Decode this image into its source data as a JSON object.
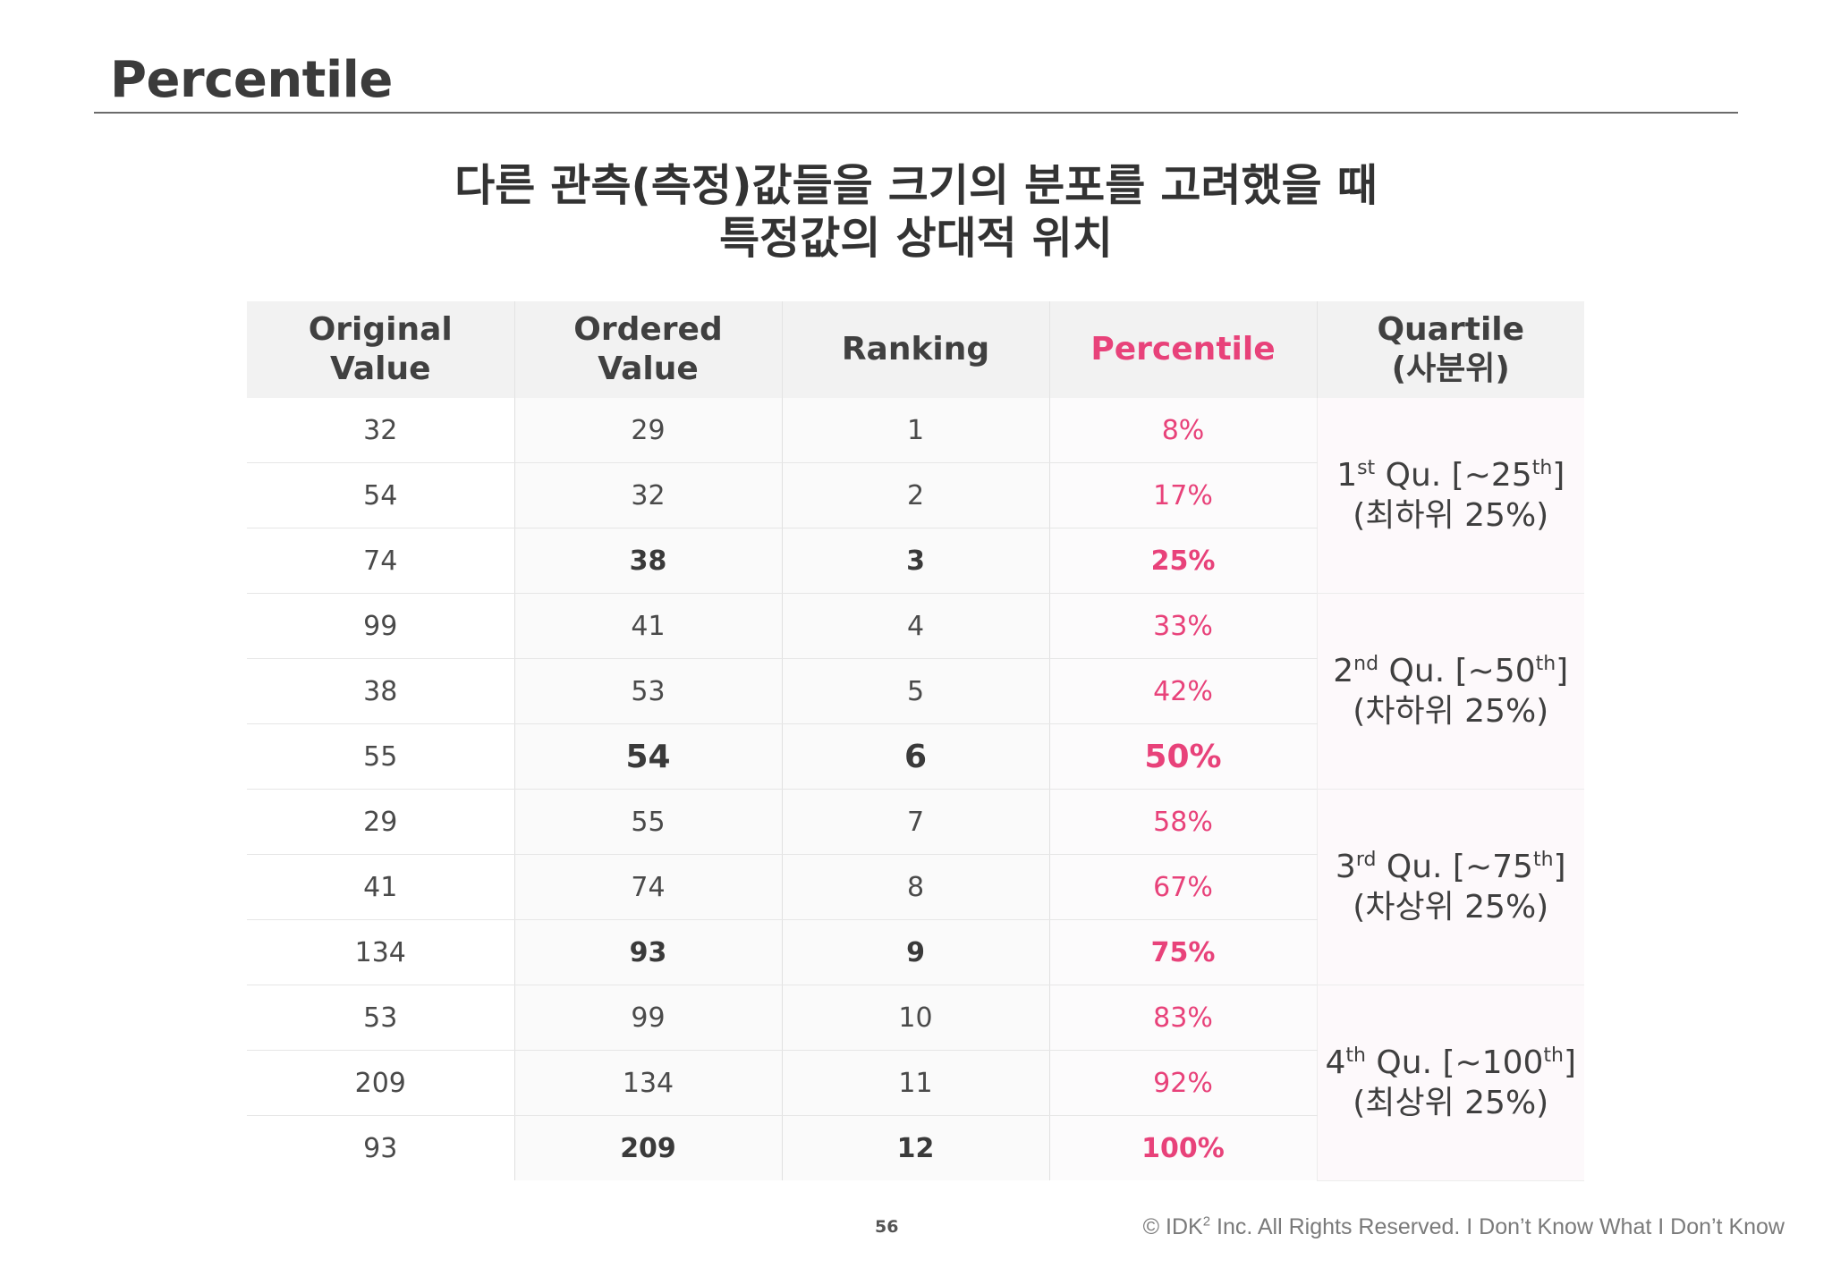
{
  "header": {
    "title": "Percentile"
  },
  "subtitle": {
    "line1": "다른 관측(측정)값들을 크기의 분포를 고려했을 때",
    "line2": "특정값의 상대적 위치"
  },
  "table": {
    "headers": {
      "original": [
        "Original",
        "Value"
      ],
      "ordered": [
        "Ordered",
        "Value"
      ],
      "ranking": "Ranking",
      "percentile": "Percentile",
      "quartile": [
        "Quartile",
        "(사분위)"
      ]
    },
    "rows": [
      {
        "original": "32",
        "ordered": "29",
        "rank": "1",
        "percentile": "8%",
        "emphasis": false
      },
      {
        "original": "54",
        "ordered": "32",
        "rank": "2",
        "percentile": "17%",
        "emphasis": false
      },
      {
        "original": "74",
        "ordered": "38",
        "rank": "3",
        "percentile": "25%",
        "emphasis": true
      },
      {
        "original": "99",
        "ordered": "41",
        "rank": "4",
        "percentile": "33%",
        "emphasis": false
      },
      {
        "original": "38",
        "ordered": "53",
        "rank": "5",
        "percentile": "42%",
        "emphasis": false
      },
      {
        "original": "55",
        "ordered": "54",
        "rank": "6",
        "percentile": "50%",
        "emphasis": true
      },
      {
        "original": "29",
        "ordered": "55",
        "rank": "7",
        "percentile": "58%",
        "emphasis": false
      },
      {
        "original": "41",
        "ordered": "74",
        "rank": "8",
        "percentile": "67%",
        "emphasis": false
      },
      {
        "original": "134",
        "ordered": "93",
        "rank": "9",
        "percentile": "75%",
        "emphasis": true
      },
      {
        "original": "53",
        "ordered": "99",
        "rank": "10",
        "percentile": "83%",
        "emphasis": false
      },
      {
        "original": "209",
        "ordered": "134",
        "rank": "11",
        "percentile": "92%",
        "emphasis": false
      },
      {
        "original": "93",
        "ordered": "209",
        "rank": "12",
        "percentile": "100%",
        "emphasis": true
      }
    ],
    "quartiles": [
      {
        "num": "1",
        "suffix": "st",
        "label": " Qu. [~25",
        "label_sup": "th",
        "label_end": "]",
        "desc": "(최하위 25%)"
      },
      {
        "num": "2",
        "suffix": "nd",
        "label": " Qu. [~50",
        "label_sup": "th",
        "label_end": "]",
        "desc": "(차하위 25%)"
      },
      {
        "num": "3",
        "suffix": "rd",
        "label": " Qu. [~75",
        "label_sup": "th",
        "label_end": "]",
        "desc": "(차상위 25%)"
      },
      {
        "num": "4",
        "suffix": "th",
        "label": " Qu. [~100",
        "label_sup": "th",
        "label_end": "]",
        "desc": "(최상위 25%)"
      }
    ]
  },
  "footer": {
    "page_number": "56",
    "copyright_pre": "© IDK",
    "copyright_sup": "2",
    "copyright_post": " Inc. All Rights Reserved.  I Don’t Know What I Don’t Know"
  },
  "colors": {
    "accent": "#e8427a",
    "header_bg": "#f2f2f2",
    "text": "#3a3a3a"
  }
}
